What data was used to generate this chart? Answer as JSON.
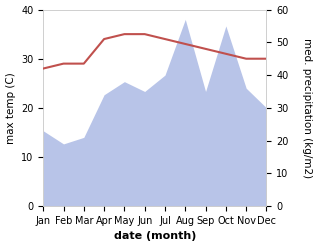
{
  "months": [
    "Jan",
    "Feb",
    "Mar",
    "Apr",
    "May",
    "Jun",
    "Jul",
    "Aug",
    "Sep",
    "Oct",
    "Nov",
    "Dec"
  ],
  "temperature": [
    28,
    29,
    29,
    34,
    35,
    35,
    34,
    33,
    32,
    31,
    30,
    30
  ],
  "precipitation": [
    23,
    19,
    21,
    34,
    38,
    35,
    40,
    57,
    35,
    55,
    36,
    30
  ],
  "temp_color": "#c0504d",
  "precip_fill_color": "#b8c4e8",
  "left_ylim": [
    0,
    40
  ],
  "right_ylim": [
    0,
    60
  ],
  "left_ylabel": "max temp (C)",
  "right_ylabel": "med. precipitation (kg/m2)",
  "xlabel": "date (month)",
  "xlabel_fontsize": 8,
  "ylabel_fontsize": 7.5,
  "tick_fontsize": 7,
  "bg_color": "#ffffff",
  "figsize": [
    3.18,
    2.47
  ],
  "dpi": 100
}
